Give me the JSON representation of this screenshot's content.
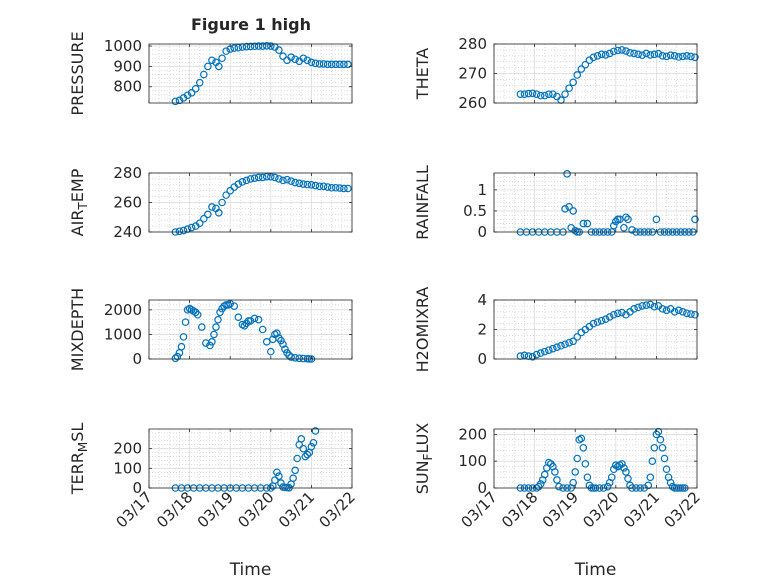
{
  "figure": {
    "title": "Figure 1 high",
    "accent_color": "#0072BD"
  },
  "chart_data": [
    {
      "id": "pressure",
      "type": "scatter",
      "ylabel": "PRESSURE",
      "xlabel": "",
      "ylim": [
        720,
        1010
      ],
      "yticks": [
        800,
        900,
        1000
      ],
      "xlim": [
        0,
        5
      ],
      "xtick_labels": [
        "03/17",
        "03/18",
        "03/19",
        "03/20",
        "03/21",
        "03/22"
      ],
      "show_xticklabels": false,
      "grid": true,
      "minor_grid": true,
      "marker": "open-circle",
      "x": [
        0.65,
        0.75,
        0.85,
        0.95,
        1.05,
        1.15,
        1.25,
        1.35,
        1.45,
        1.55,
        1.65,
        1.72,
        1.8,
        1.9,
        2.0,
        2.1,
        2.2,
        2.3,
        2.4,
        2.5,
        2.6,
        2.7,
        2.8,
        2.9,
        3.0,
        3.1,
        3.2,
        3.3,
        3.4,
        3.5,
        3.6,
        3.7,
        3.8,
        3.9,
        4.0,
        4.1,
        4.2,
        4.3,
        4.4,
        4.5,
        4.6,
        4.7,
        4.8,
        4.9
      ],
      "y": [
        728,
        733,
        745,
        758,
        770,
        790,
        820,
        860,
        900,
        930,
        920,
        900,
        940,
        975,
        985,
        990,
        992,
        995,
        997,
        998,
        999,
        1000,
        1000,
        1001,
        1000,
        995,
        980,
        950,
        930,
        945,
        935,
        925,
        940,
        930,
        920,
        915,
        912,
        912,
        910,
        910,
        910,
        910,
        910,
        910
      ]
    },
    {
      "id": "theta",
      "type": "scatter",
      "ylabel": "THETA",
      "xlabel": "",
      "ylim": [
        260,
        280
      ],
      "yticks": [
        260,
        270,
        280
      ],
      "xlim": [
        0,
        5
      ],
      "xtick_labels": [
        "03/17",
        "03/18",
        "03/19",
        "03/20",
        "03/21",
        "03/22"
      ],
      "show_xticklabels": false,
      "grid": true,
      "minor_grid": true,
      "marker": "open-circle",
      "x": [
        0.65,
        0.75,
        0.85,
        0.95,
        1.05,
        1.15,
        1.25,
        1.35,
        1.45,
        1.55,
        1.65,
        1.75,
        1.85,
        1.95,
        2.05,
        2.15,
        2.25,
        2.35,
        2.45,
        2.55,
        2.65,
        2.75,
        2.85,
        2.95,
        3.05,
        3.15,
        3.25,
        3.35,
        3.45,
        3.55,
        3.65,
        3.75,
        3.85,
        3.95,
        4.05,
        4.15,
        4.25,
        4.35,
        4.45,
        4.55,
        4.65,
        4.75,
        4.85,
        4.95
      ],
      "y": [
        263,
        263,
        263.2,
        263.3,
        263,
        262.5,
        262.5,
        263,
        263,
        262.2,
        261,
        263,
        265,
        267,
        269.5,
        271.5,
        273,
        274.5,
        275.5,
        276,
        276.5,
        276.3,
        276.8,
        277.5,
        277.8,
        278,
        277.6,
        277,
        276.8,
        276.5,
        276.2,
        276.8,
        276.3,
        276.5,
        276.7,
        276,
        275.8,
        276.2,
        276,
        275.6,
        275.8,
        276,
        275.8,
        275.5
      ]
    },
    {
      "id": "air_temp",
      "type": "scatter",
      "ylabel": "AIR_TEMP",
      "ylabel_display": [
        "AIR",
        "T",
        "EMP"
      ],
      "xlabel": "",
      "ylim": [
        240,
        280
      ],
      "yticks": [
        240,
        260,
        280
      ],
      "xlim": [
        0,
        5
      ],
      "xtick_labels": [
        "03/17",
        "03/18",
        "03/19",
        "03/20",
        "03/21",
        "03/22"
      ],
      "show_xticklabels": false,
      "grid": true,
      "minor_grid": true,
      "marker": "open-circle",
      "x": [
        0.65,
        0.75,
        0.85,
        0.95,
        1.05,
        1.15,
        1.25,
        1.35,
        1.45,
        1.55,
        1.65,
        1.72,
        1.8,
        1.9,
        2.0,
        2.1,
        2.2,
        2.3,
        2.4,
        2.5,
        2.6,
        2.7,
        2.8,
        2.9,
        3.0,
        3.1,
        3.2,
        3.3,
        3.4,
        3.5,
        3.6,
        3.7,
        3.8,
        3.9,
        4.0,
        4.1,
        4.2,
        4.3,
        4.4,
        4.5,
        4.6,
        4.7,
        4.8,
        4.9
      ],
      "y": [
        240,
        240.5,
        241,
        242,
        243,
        244,
        246,
        249,
        252,
        257,
        256,
        253,
        260,
        265,
        268,
        270.5,
        272.5,
        274,
        275,
        276,
        276.5,
        277,
        277,
        277.5,
        277.5,
        277,
        276,
        275,
        275.5,
        274.5,
        273.5,
        273,
        272.5,
        272.2,
        272,
        271.5,
        271,
        271,
        270.5,
        270,
        270,
        269.8,
        269.5,
        269.5
      ]
    },
    {
      "id": "rainfall",
      "type": "scatter",
      "ylabel": "RAINFALL",
      "xlabel": "",
      "ylim": [
        0,
        1.4
      ],
      "yticks": [
        0,
        0.5,
        1
      ],
      "xlim": [
        0,
        5
      ],
      "xtick_labels": [
        "03/17",
        "03/18",
        "03/19",
        "03/20",
        "03/21",
        "03/22"
      ],
      "show_xticklabels": false,
      "grid": true,
      "minor_grid": true,
      "marker": "open-circle",
      "x": [
        0.65,
        0.8,
        0.95,
        1.1,
        1.25,
        1.4,
        1.55,
        1.7,
        1.75,
        1.8,
        1.85,
        1.9,
        1.95,
        2.0,
        2.05,
        2.1,
        2.2,
        2.3,
        2.4,
        2.5,
        2.6,
        2.7,
        2.8,
        2.9,
        2.95,
        3.0,
        3.05,
        3.1,
        3.2,
        3.25,
        3.3,
        3.4,
        3.5,
        3.6,
        3.7,
        3.8,
        3.9,
        4.0,
        4.1,
        4.2,
        4.3,
        4.4,
        4.5,
        4.6,
        4.7,
        4.8,
        4.9,
        4.95
      ],
      "y": [
        0,
        0,
        0,
        0,
        0,
        0,
        0,
        0,
        0.55,
        1.38,
        0.6,
        0.1,
        0.5,
        0.03,
        0,
        0,
        0.2,
        0.2,
        0,
        0,
        0,
        0,
        0,
        0,
        0.15,
        0.25,
        0.3,
        0.3,
        0.1,
        0.35,
        0.3,
        0.05,
        0,
        0,
        0,
        0,
        0,
        0.3,
        0,
        0,
        0,
        0,
        0,
        0,
        0,
        0,
        0,
        0.3
      ]
    },
    {
      "id": "mixdepth",
      "type": "scatter",
      "ylabel": "MIXDEPTH",
      "xlabel": "",
      "ylim": [
        0,
        2400
      ],
      "yticks": [
        0,
        1000,
        2000
      ],
      "xlim": [
        0,
        5
      ],
      "xtick_labels": [
        "03/17",
        "03/18",
        "03/19",
        "03/20",
        "03/21",
        "03/22"
      ],
      "show_xticklabels": false,
      "grid": true,
      "minor_grid": true,
      "marker": "open-circle",
      "x": [
        0.65,
        0.7,
        0.75,
        0.8,
        0.85,
        0.9,
        0.95,
        1.0,
        1.05,
        1.1,
        1.15,
        1.2,
        1.3,
        1.4,
        1.5,
        1.55,
        1.6,
        1.65,
        1.7,
        1.75,
        1.8,
        1.85,
        1.9,
        1.95,
        2.0,
        2.1,
        2.2,
        2.3,
        2.35,
        2.4,
        2.45,
        2.5,
        2.6,
        2.7,
        2.8,
        2.9,
        3.0,
        3.05,
        3.1,
        3.15,
        3.2,
        3.25,
        3.3,
        3.35,
        3.4,
        3.45,
        3.5,
        3.6,
        3.7,
        3.8,
        3.9,
        3.95,
        4.0
      ],
      "y": [
        30,
        100,
        250,
        500,
        900,
        1500,
        2000,
        2050,
        2000,
        1950,
        1900,
        1800,
        1300,
        650,
        550,
        700,
        1000,
        1300,
        1600,
        1900,
        2050,
        2150,
        2200,
        2200,
        2250,
        2150,
        1700,
        1400,
        1350,
        1450,
        1550,
        1550,
        1650,
        1600,
        1200,
        700,
        300,
        800,
        1000,
        1050,
        850,
        750,
        600,
        400,
        250,
        150,
        80,
        50,
        30,
        20,
        10,
        5,
        0
      ]
    },
    {
      "id": "h2omixra",
      "type": "scatter",
      "ylabel": "H2OMIXRA",
      "xlabel": "",
      "ylim": [
        0,
        4
      ],
      "yticks": [
        0,
        2,
        4
      ],
      "xlim": [
        0,
        5
      ],
      "xtick_labels": [
        "03/17",
        "03/18",
        "03/19",
        "03/20",
        "03/21",
        "03/22"
      ],
      "show_xticklabels": false,
      "grid": true,
      "minor_grid": true,
      "marker": "open-circle",
      "x": [
        0.65,
        0.75,
        0.85,
        0.95,
        1.05,
        1.15,
        1.25,
        1.35,
        1.45,
        1.55,
        1.65,
        1.75,
        1.85,
        1.95,
        2.05,
        2.15,
        2.25,
        2.35,
        2.45,
        2.55,
        2.65,
        2.75,
        2.85,
        2.95,
        3.05,
        3.15,
        3.25,
        3.35,
        3.45,
        3.55,
        3.65,
        3.75,
        3.85,
        3.95,
        4.05,
        4.15,
        4.25,
        4.35,
        4.45,
        4.55,
        4.65,
        4.75,
        4.85,
        4.95
      ],
      "y": [
        0.2,
        0.25,
        0.2,
        0.15,
        0.3,
        0.4,
        0.5,
        0.6,
        0.7,
        0.8,
        0.9,
        1.0,
        1.1,
        1.2,
        1.5,
        1.8,
        2.0,
        2.2,
        2.4,
        2.5,
        2.6,
        2.7,
        2.85,
        3.0,
        3.1,
        3.15,
        3.0,
        3.2,
        3.4,
        3.5,
        3.6,
        3.65,
        3.7,
        3.55,
        3.6,
        3.4,
        3.3,
        3.4,
        3.2,
        3.3,
        3.2,
        3.1,
        3.05,
        3.0
      ]
    },
    {
      "id": "terr_msl",
      "type": "scatter",
      "ylabel": "TERR_MSL",
      "ylabel_display": [
        "TERR",
        "M",
        "SL"
      ],
      "xlabel": "Time",
      "ylim": [
        0,
        300
      ],
      "yticks": [
        0,
        100,
        200
      ],
      "xlim": [
        0,
        5
      ],
      "xtick_labels": [
        "03/17",
        "03/18",
        "03/19",
        "03/20",
        "03/21",
        "03/22"
      ],
      "show_xticklabels": true,
      "grid": true,
      "minor_grid": true,
      "marker": "open-circle",
      "x": [
        0.65,
        0.8,
        0.95,
        1.1,
        1.25,
        1.4,
        1.55,
        1.7,
        1.85,
        2.0,
        2.15,
        2.3,
        2.45,
        2.6,
        2.75,
        2.9,
        3.0,
        3.05,
        3.1,
        3.15,
        3.2,
        3.25,
        3.3,
        3.35,
        3.4,
        3.45,
        3.5,
        3.55,
        3.6,
        3.65,
        3.7,
        3.75,
        3.8,
        3.85,
        3.9,
        3.95,
        4.0,
        4.05,
        4.1
      ],
      "y": [
        0,
        0,
        0,
        0,
        0,
        0,
        0,
        0,
        0,
        0,
        0,
        0,
        0,
        0,
        0,
        0,
        0,
        10,
        40,
        80,
        60,
        25,
        5,
        3,
        2,
        1,
        20,
        50,
        90,
        150,
        220,
        250,
        200,
        160,
        170,
        180,
        210,
        230,
        290
      ]
    },
    {
      "id": "sun_flux",
      "type": "scatter",
      "ylabel": "SUN_FLUX",
      "ylabel_display": [
        "SUN",
        "F",
        "LUX"
      ],
      "xlabel": "Time",
      "ylim": [
        0,
        220
      ],
      "yticks": [
        0,
        100,
        200
      ],
      "xlim": [
        0,
        5
      ],
      "xtick_labels": [
        "03/17",
        "03/18",
        "03/19",
        "03/20",
        "03/21",
        "03/22"
      ],
      "show_xticklabels": true,
      "grid": true,
      "minor_grid": true,
      "marker": "open-circle",
      "x": [
        0.65,
        0.75,
        0.85,
        0.95,
        1.05,
        1.1,
        1.15,
        1.2,
        1.25,
        1.3,
        1.35,
        1.4,
        1.45,
        1.5,
        1.55,
        1.6,
        1.7,
        1.8,
        1.9,
        1.95,
        2.0,
        2.05,
        2.1,
        2.15,
        2.2,
        2.25,
        2.3,
        2.35,
        2.4,
        2.45,
        2.5,
        2.6,
        2.7,
        2.8,
        2.85,
        2.9,
        2.95,
        3.0,
        3.05,
        3.1,
        3.15,
        3.2,
        3.25,
        3.3,
        3.35,
        3.4,
        3.5,
        3.6,
        3.7,
        3.8,
        3.85,
        3.9,
        3.95,
        4.0,
        4.05,
        4.1,
        4.15,
        4.2,
        4.25,
        4.3,
        4.35,
        4.4,
        4.45,
        4.5,
        4.55,
        4.6,
        4.65,
        4.7
      ],
      "y": [
        0,
        0,
        0,
        0,
        0,
        5,
        15,
        30,
        50,
        75,
        95,
        90,
        80,
        60,
        30,
        5,
        0,
        0,
        0,
        20,
        60,
        110,
        180,
        185,
        150,
        90,
        40,
        10,
        0,
        0,
        0,
        0,
        0,
        5,
        20,
        40,
        70,
        85,
        80,
        85,
        90,
        75,
        60,
        35,
        10,
        0,
        0,
        0,
        0,
        10,
        40,
        100,
        150,
        200,
        210,
        180,
        150,
        110,
        70,
        40,
        20,
        5,
        0,
        0,
        0,
        0,
        0,
        0
      ]
    }
  ]
}
